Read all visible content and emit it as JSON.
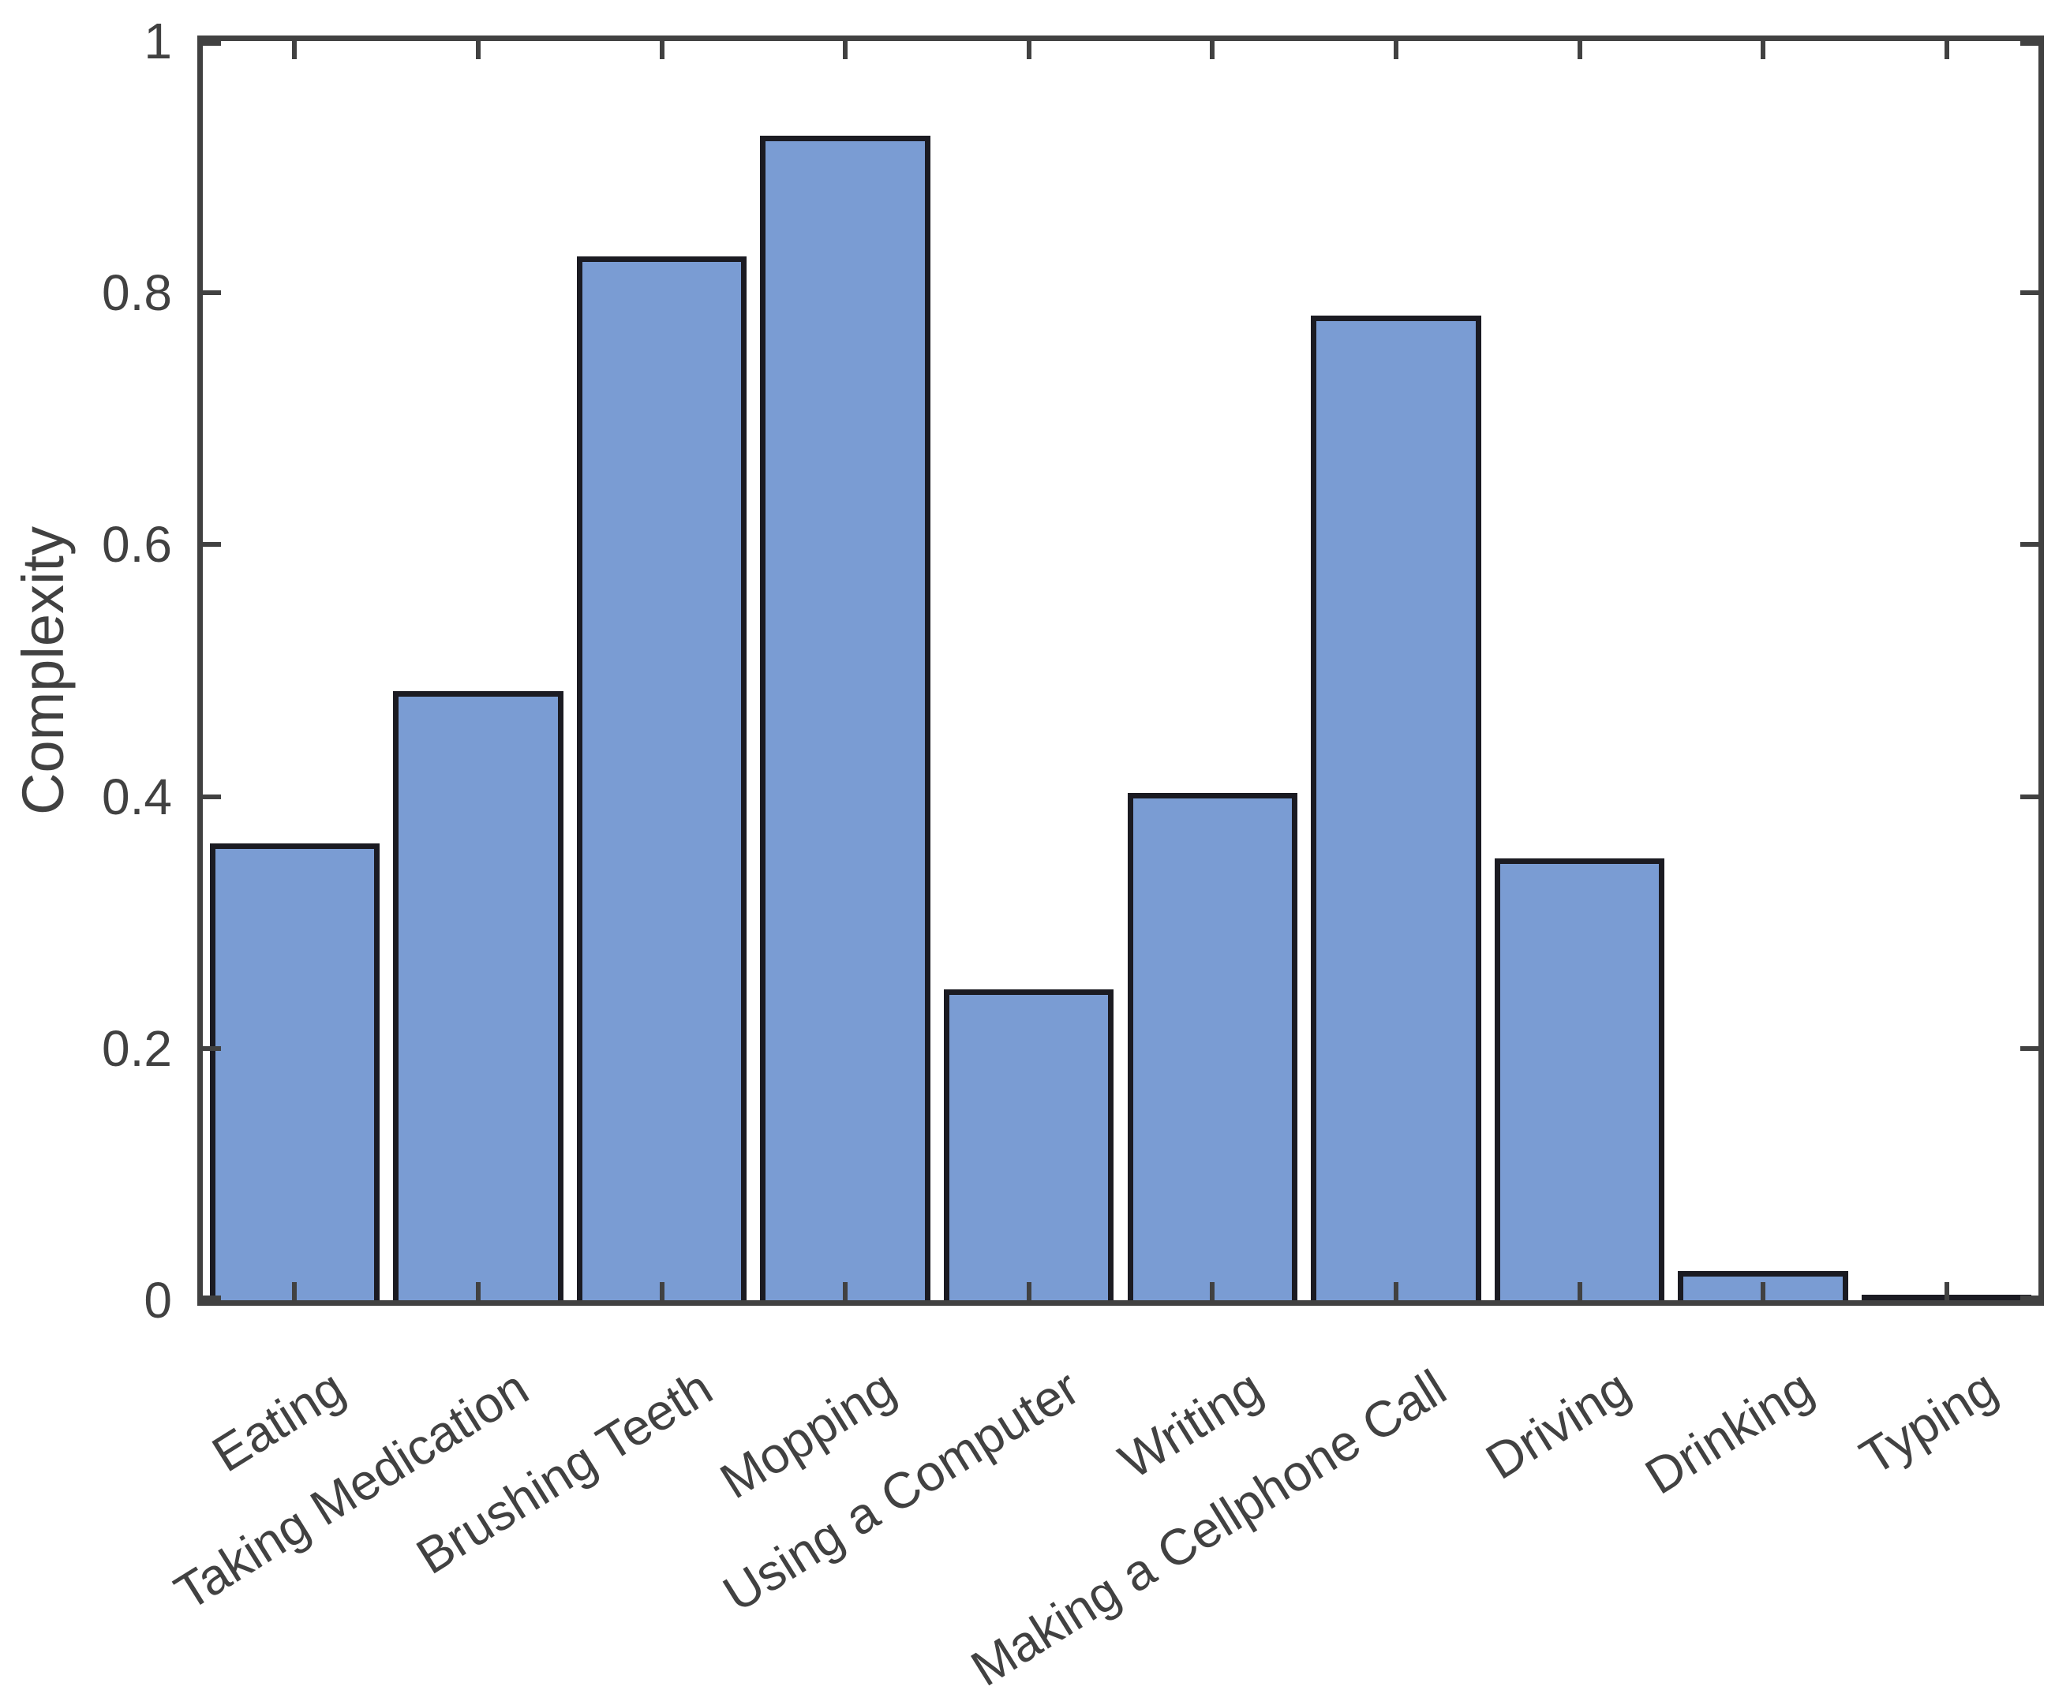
{
  "chart_data": {
    "type": "bar",
    "title": "",
    "xlabel": "",
    "ylabel": "Complexity",
    "categories": [
      "Eating",
      "Taking Medication",
      "Brushing Teeth",
      "Mopping",
      "Using a Computer",
      "Writing",
      "Making a Cellphone Call",
      "Driving",
      "Drinking",
      "Typing"
    ],
    "values": [
      0.363,
      0.484,
      0.829,
      0.925,
      0.247,
      0.403,
      0.782,
      0.351,
      0.023,
      0.004
    ],
    "ylim": [
      0,
      1
    ],
    "y_ticks": [
      0,
      0.2,
      0.4,
      0.6,
      0.8,
      1
    ],
    "y_tick_labels": [
      "0",
      "0.2",
      "0.4",
      "0.6",
      "0.8",
      "1"
    ],
    "grid": false,
    "legend_visible": false,
    "bar_width_fraction": 0.926,
    "x_tick_label_rotation_deg": 32,
    "colors": {
      "bar_fill": "#7A9CD3",
      "bar_edge": "#1B1B22",
      "axis": "#414141",
      "text": "#414141",
      "background": "#ffffff"
    }
  }
}
